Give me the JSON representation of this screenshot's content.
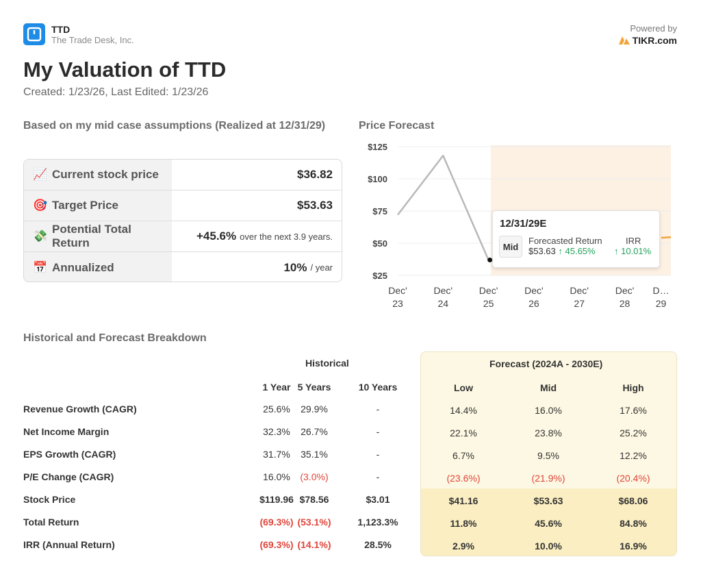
{
  "header": {
    "ticker": "TTD",
    "company": "The Trade Desk, Inc.",
    "powered_by": "Powered by",
    "brand": "TIKR.com",
    "title": "My Valuation of TTD",
    "created": "Created: 1/23/26, Last Edited: 1/23/26"
  },
  "summary": {
    "heading": "Based on my mid case assumptions (Realized at 12/31/29)",
    "rows": [
      {
        "icon": "chart-increasing-icon",
        "label": "Current stock price",
        "value": "$36.82",
        "suffix": ""
      },
      {
        "icon": "target-icon",
        "label": "Target Price",
        "value": "$53.63",
        "suffix": ""
      },
      {
        "icon": "money-icon",
        "label": "Potential Total Return",
        "value": "+45.6%",
        "suffix": "over the next 3.9 years."
      },
      {
        "icon": "calendar-icon",
        "label": "Annualized",
        "value": "10%",
        "suffix": "/ year"
      }
    ]
  },
  "chart": {
    "heading": "Price Forecast",
    "tooltip": {
      "date": "12/31/29E",
      "case": "Mid",
      "forecasted_return_label": "Forecasted Return",
      "price": "$53.63",
      "return": "↑ 45.65%",
      "irr_label": "IRR",
      "irr": "↑ 10.01%"
    }
  },
  "chart_data": {
    "type": "line",
    "title": "Price Forecast",
    "x_tick_labels": [
      [
        "Dec'",
        "23"
      ],
      [
        "Dec'",
        "24"
      ],
      [
        "Dec'",
        "25"
      ],
      [
        "Dec'",
        "26"
      ],
      [
        "Dec'",
        "27"
      ],
      [
        "Dec'",
        "28"
      ],
      [
        "D…",
        "29"
      ]
    ],
    "y_tick_labels": [
      "$125",
      "$100",
      "$75",
      "$50",
      "$25"
    ],
    "ylim": [
      25,
      125
    ],
    "historical": {
      "x": [
        0,
        1,
        2
      ],
      "y": [
        72,
        118,
        37
      ]
    },
    "forecast_end": {
      "x": 6.8,
      "y": 53.63
    },
    "forecast_region_start": 2.05,
    "colors": {
      "historical_line": "#b8b8b8",
      "forecast_region": "#fdf1e4",
      "forecast_line": "#f2a43a"
    }
  },
  "breakdown": {
    "heading": "Historical and Forecast Breakdown",
    "historical_label": "Historical",
    "forecast_label": "Forecast (2024A - 2030E)",
    "columns": [
      "1 Year",
      "5 Years",
      "10 Years",
      "Low",
      "Mid",
      "High"
    ],
    "rows": [
      {
        "label": "Revenue Growth (CAGR)",
        "values": [
          "25.6%",
          "29.9%",
          "-",
          "14.4%",
          "16.0%",
          "17.6%"
        ],
        "red": [
          false,
          false,
          false,
          false,
          false,
          false
        ],
        "bold": false
      },
      {
        "label": "Net Income Margin",
        "values": [
          "32.3%",
          "26.7%",
          "-",
          "22.1%",
          "23.8%",
          "25.2%"
        ],
        "red": [
          false,
          false,
          false,
          false,
          false,
          false
        ],
        "bold": false
      },
      {
        "label": "EPS Growth (CAGR)",
        "values": [
          "31.7%",
          "35.1%",
          "-",
          "6.7%",
          "9.5%",
          "12.2%"
        ],
        "red": [
          false,
          false,
          false,
          false,
          false,
          false
        ],
        "bold": false
      },
      {
        "label": "P/E Change (CAGR)",
        "values": [
          "16.0%",
          "(3.0%)",
          "-",
          "(23.6%)",
          "(21.9%)",
          "(20.4%)"
        ],
        "red": [
          false,
          true,
          false,
          true,
          true,
          true
        ],
        "bold": false
      },
      {
        "label": "Stock Price",
        "values": [
          "$119.96",
          "$78.56",
          "$3.01",
          "$41.16",
          "$53.63",
          "$68.06"
        ],
        "red": [
          false,
          false,
          false,
          false,
          false,
          false
        ],
        "bold": true
      },
      {
        "label": "Total Return",
        "values": [
          "(69.3%)",
          "(53.1%)",
          "1,123.3%",
          "11.8%",
          "45.6%",
          "84.8%"
        ],
        "red": [
          true,
          true,
          false,
          false,
          false,
          false
        ],
        "bold": true
      },
      {
        "label": "IRR (Annual Return)",
        "values": [
          "(69.3%)",
          "(14.1%)",
          "28.5%",
          "2.9%",
          "10.0%",
          "16.9%"
        ],
        "red": [
          true,
          true,
          false,
          false,
          false,
          false
        ],
        "bold": true
      }
    ]
  }
}
